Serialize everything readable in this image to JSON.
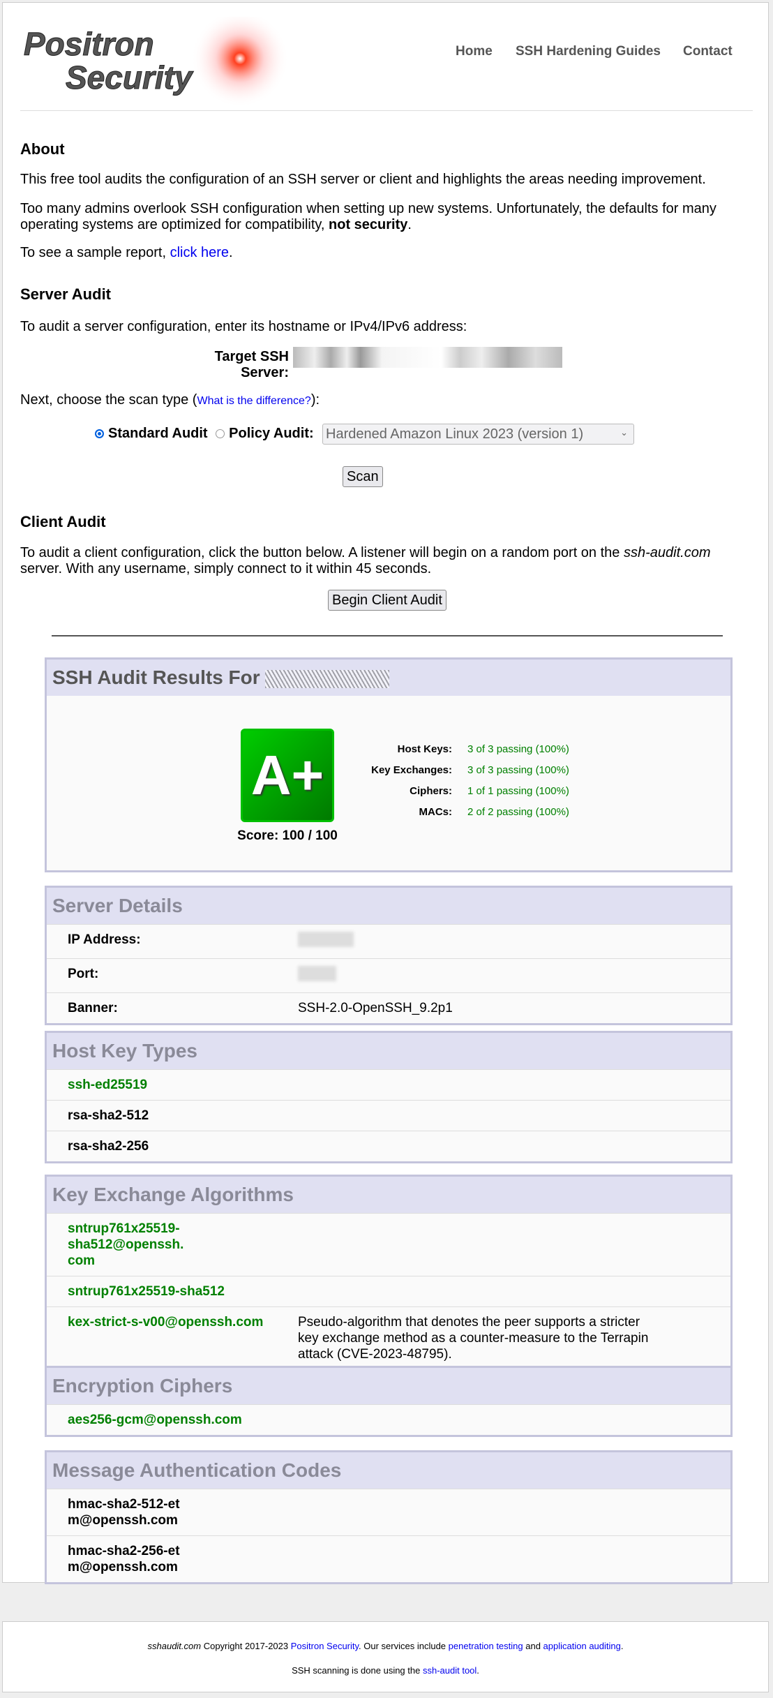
{
  "header": {
    "logo_text": "Positron Security",
    "nav": [
      "Home",
      "SSH Hardening Guides",
      "Contact"
    ]
  },
  "about": {
    "title": "About",
    "p1": "This free tool audits the configuration of an SSH server or client and highlights the areas needing improvement.",
    "p2a": "Too many admins overlook SSH configuration when setting up new systems. Unfortunately, the defaults for many operating systems are optimized for compatibility, ",
    "p2b": "not security",
    "p2c": ".",
    "p3a": "To see a sample report, ",
    "p3link": "click here",
    "p3c": "."
  },
  "server_audit": {
    "title": "Server Audit",
    "intro": "To audit a server configuration, enter its hostname or IPv4/IPv6 address:",
    "target_label": "Target SSH Server:",
    "scan_type_a": "Next, choose the scan type (",
    "scan_type_link": "What is the difference?",
    "scan_type_c": "):",
    "standard_label": "Standard Audit",
    "policy_label": "Policy Audit:",
    "policy_selected": "Hardened Amazon Linux 2023 (version 1)",
    "scan_button": "Scan"
  },
  "client_audit": {
    "title": "Client Audit",
    "p_a": "To audit a client configuration, click the button below. A listener will begin on a random port on the ",
    "p_host": "ssh-audit.com",
    "p_c": " server. With any username, simply connect to it within 45 seconds.",
    "button": "Begin Client Audit"
  },
  "results": {
    "title": "SSH Audit Results For",
    "grade": "A+",
    "score": "Score: 100 / 100",
    "grade_color": "#00a000",
    "stats": [
      {
        "label": "Host Keys:",
        "value": "3 of 3 passing (100%)"
      },
      {
        "label": "Key Exchanges:",
        "value": "3 of 3 passing (100%)"
      },
      {
        "label": "Ciphers:",
        "value": "1 of 1 passing (100%)"
      },
      {
        "label": "MACs:",
        "value": "2 of 2 passing (100%)"
      }
    ]
  },
  "server_details": {
    "title": "Server Details",
    "ip_label": "IP Address:",
    "port_label": "Port:",
    "banner_label": "Banner:",
    "banner": "SSH-2.0-OpenSSH_9.2p1"
  },
  "host_keys": {
    "title": "Host Key Types",
    "items": [
      "ssh-ed25519",
      "rsa-sha2-512",
      "rsa-sha2-256"
    ]
  },
  "kex": {
    "title": "Key Exchange Algorithms",
    "items": [
      "sntrup761x25519-sha512@openssh.com",
      "sntrup761x25519-sha512",
      "kex-strict-s-v00@openssh.com"
    ],
    "note": "Pseudo-algorithm that denotes the peer supports a stricter key exchange method as a counter-measure to the Terrapin attack (CVE-2023-48795)."
  },
  "ciphers": {
    "title": "Encryption Ciphers",
    "items": [
      "aes256-gcm@openssh.com"
    ]
  },
  "macs": {
    "title": "Message Authentication Codes",
    "items": [
      "hmac-sha2-512-etm@openssh.com",
      "hmac-sha2-256-etm@openssh.com"
    ]
  },
  "footer": {
    "site": "sshaudit.com",
    "copy": " Copyright 2017-2023 ",
    "company": "Positron Security",
    "services": ". Our services include ",
    "pentest": "penetration testing",
    "and": " and ",
    "appaudit": "application auditing",
    "end": ".",
    "line2": "SSH scanning is done using the ",
    "tool": "ssh-audit tool",
    "line2end": "."
  }
}
